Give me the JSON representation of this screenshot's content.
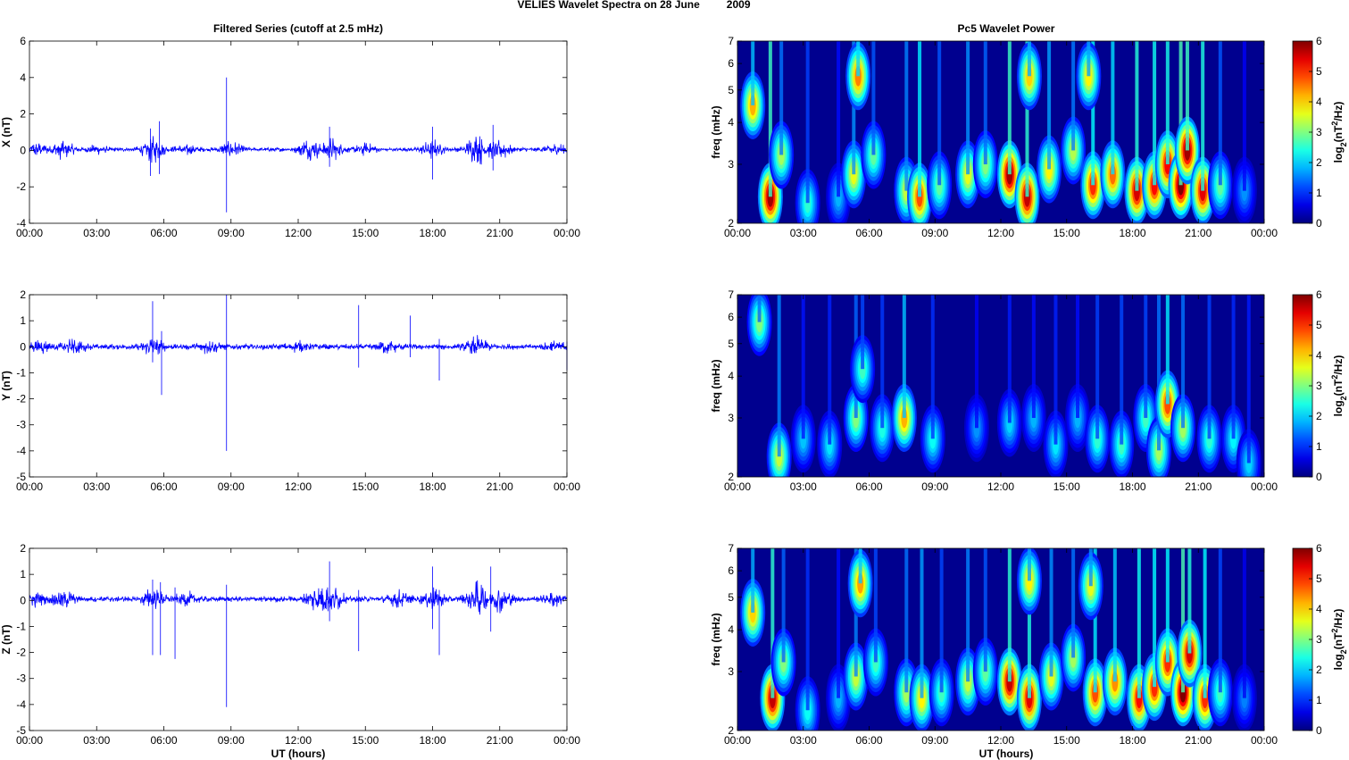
{
  "figure": {
    "title_left": "VELIES Wavelet Spectra on 28 June",
    "title_year": "2009",
    "left_title": "Filtered Series (cutoff at 2.5 mHz)",
    "right_title": "Pc5 Wavelet Power",
    "x_axis_label": "UT (hours)",
    "freq_label": "freq (mHz)",
    "colorbar_label_prefix": "log",
    "colorbar_label_sub": "2",
    "colorbar_label_mid": "(nT",
    "colorbar_label_sup": "2",
    "colorbar_label_suffix": "/Hz)"
  },
  "colors": {
    "trace": "#0000ff",
    "spectrum_background": "#00008f"
  },
  "chart_data": [
    {
      "type": "line",
      "panel": "x-series",
      "title": "Filtered Series (cutoff at 2.5 mHz)",
      "ylabel": "X (nT)",
      "xlabel": "",
      "xlim": [
        0,
        24
      ],
      "ylim": [
        -4,
        6
      ],
      "x_ticks": [
        "00:00",
        "03:00",
        "06:00",
        "09:00",
        "12:00",
        "15:00",
        "18:00",
        "21:00",
        "00:00"
      ],
      "y_ticks": [
        "-4",
        "-2",
        "0",
        "2",
        "4",
        "6"
      ],
      "baseline": 0.05,
      "activity": [
        {
          "t": 0.3,
          "amp": 0.35
        },
        {
          "t": 1.5,
          "amp": 0.5
        },
        {
          "t": 3.0,
          "amp": 0.2
        },
        {
          "t": 5.5,
          "amp": 0.7
        },
        {
          "t": 7.0,
          "amp": 0.3
        },
        {
          "t": 9.0,
          "amp": 0.4
        },
        {
          "t": 12.5,
          "amp": 0.6
        },
        {
          "t": 13.5,
          "amp": 0.6
        },
        {
          "t": 15.0,
          "amp": 0.3
        },
        {
          "t": 18.0,
          "amp": 0.5
        },
        {
          "t": 20.0,
          "amp": 0.9
        },
        {
          "t": 21.0,
          "amp": 0.6
        },
        {
          "t": 23.5,
          "amp": 0.3
        }
      ],
      "spikes": [
        {
          "t": 5.4,
          "min": -1.4,
          "max": 1.2
        },
        {
          "t": 5.8,
          "min": -1.3,
          "max": 1.6
        },
        {
          "t": 8.8,
          "min": -3.4,
          "max": 4.0
        },
        {
          "t": 13.4,
          "min": -0.9,
          "max": 1.3
        },
        {
          "t": 18.0,
          "min": -1.6,
          "max": 1.3
        },
        {
          "t": 20.7,
          "min": -1.1,
          "max": 1.4
        }
      ]
    },
    {
      "type": "line",
      "panel": "y-series",
      "title": "",
      "ylabel": "Y (nT)",
      "xlabel": "",
      "xlim": [
        0,
        24
      ],
      "ylim": [
        -5,
        2
      ],
      "x_ticks": [
        "00:00",
        "03:00",
        "06:00",
        "09:00",
        "12:00",
        "15:00",
        "18:00",
        "21:00",
        "00:00"
      ],
      "y_ticks": [
        "-5",
        "-4",
        "-3",
        "-2",
        "-1",
        "0",
        "1",
        "2"
      ],
      "baseline": 0.0,
      "activity": [
        {
          "t": 0.5,
          "amp": 0.2
        },
        {
          "t": 2.0,
          "amp": 0.25
        },
        {
          "t": 5.5,
          "amp": 0.3
        },
        {
          "t": 8.0,
          "amp": 0.2
        },
        {
          "t": 12.0,
          "amp": 0.15
        },
        {
          "t": 16.0,
          "amp": 0.2
        },
        {
          "t": 20.0,
          "amp": 0.35
        },
        {
          "t": 23.5,
          "amp": 0.2
        }
      ],
      "spikes": [
        {
          "t": 5.5,
          "min": -0.6,
          "max": 1.75
        },
        {
          "t": 5.9,
          "min": -1.85,
          "max": 0.6
        },
        {
          "t": 8.8,
          "min": -4.0,
          "max": 2.0
        },
        {
          "t": 14.7,
          "min": -0.8,
          "max": 1.6
        },
        {
          "t": 17.0,
          "min": -0.4,
          "max": 1.2
        },
        {
          "t": 18.3,
          "min": -1.3,
          "max": 0.3
        },
        {
          "t": 24.0,
          "min": -0.9,
          "max": 0.2
        }
      ]
    },
    {
      "type": "line",
      "panel": "z-series",
      "title": "",
      "ylabel": "Z (nT)",
      "xlabel": "UT (hours)",
      "xlim": [
        0,
        24
      ],
      "ylim": [
        -5,
        2
      ],
      "x_ticks": [
        "00:00",
        "03:00",
        "06:00",
        "09:00",
        "12:00",
        "15:00",
        "18:00",
        "21:00",
        "00:00"
      ],
      "y_ticks": [
        "-5",
        "-4",
        "-3",
        "-2",
        "-1",
        "0",
        "1",
        "2"
      ],
      "baseline": 0.05,
      "activity": [
        {
          "t": 0.3,
          "amp": 0.25
        },
        {
          "t": 1.5,
          "amp": 0.35
        },
        {
          "t": 5.5,
          "amp": 0.4
        },
        {
          "t": 7.0,
          "amp": 0.25
        },
        {
          "t": 12.8,
          "amp": 0.45
        },
        {
          "t": 13.5,
          "amp": 0.5
        },
        {
          "t": 16.5,
          "amp": 0.3
        },
        {
          "t": 18.0,
          "amp": 0.4
        },
        {
          "t": 20.0,
          "amp": 0.7
        },
        {
          "t": 21.0,
          "amp": 0.45
        },
        {
          "t": 23.5,
          "amp": 0.25
        }
      ],
      "spikes": [
        {
          "t": 5.5,
          "min": -2.1,
          "max": 0.8
        },
        {
          "t": 5.85,
          "min": -2.1,
          "max": 0.7
        },
        {
          "t": 6.5,
          "min": -2.25,
          "max": 0.5
        },
        {
          "t": 8.8,
          "min": -4.1,
          "max": 0.6
        },
        {
          "t": 13.4,
          "min": -0.8,
          "max": 1.5
        },
        {
          "t": 14.7,
          "min": -1.95,
          "max": 0.4
        },
        {
          "t": 18.0,
          "min": -1.1,
          "max": 1.3
        },
        {
          "t": 18.3,
          "min": -2.1,
          "max": 0.4
        },
        {
          "t": 20.6,
          "min": -1.2,
          "max": 1.3
        }
      ]
    },
    {
      "type": "heatmap",
      "panel": "x-wavelet",
      "title": "Pc5 Wavelet Power",
      "ylabel": "freq (mHz)",
      "xlabel": "",
      "xlim": [
        0,
        24
      ],
      "ylim": [
        2,
        7
      ],
      "y_scale": "log",
      "x_ticks": [
        "00:00",
        "03:00",
        "06:00",
        "09:00",
        "12:00",
        "15:00",
        "18:00",
        "21:00",
        "00:00"
      ],
      "y_ticks": [
        "2",
        "3",
        "4",
        "5",
        "6",
        "7"
      ],
      "colorbar_ticks": [
        "0",
        "1",
        "2",
        "3",
        "4",
        "5",
        "6"
      ],
      "colorbar_range": [
        0,
        6
      ],
      "blobs": [
        {
          "t": 0.7,
          "f": 4.5,
          "p": 4.2
        },
        {
          "t": 1.5,
          "f": 2.4,
          "p": 5.8
        },
        {
          "t": 2.0,
          "f": 3.2,
          "p": 3.2
        },
        {
          "t": 3.2,
          "f": 2.3,
          "p": 2.5
        },
        {
          "t": 4.6,
          "f": 2.4,
          "p": 1.8
        },
        {
          "t": 5.3,
          "f": 2.8,
          "p": 3.6
        },
        {
          "t": 5.5,
          "f": 5.5,
          "p": 4.5
        },
        {
          "t": 6.2,
          "f": 3.2,
          "p": 2.8
        },
        {
          "t": 7.7,
          "f": 2.5,
          "p": 3.4
        },
        {
          "t": 8.3,
          "f": 2.4,
          "p": 4.8
        },
        {
          "t": 9.2,
          "f": 2.6,
          "p": 2.8
        },
        {
          "t": 10.5,
          "f": 2.8,
          "p": 3.6
        },
        {
          "t": 11.3,
          "f": 3.0,
          "p": 3.0
        },
        {
          "t": 12.4,
          "f": 2.8,
          "p": 5.8
        },
        {
          "t": 13.2,
          "f": 2.4,
          "p": 5.6
        },
        {
          "t": 13.3,
          "f": 5.5,
          "p": 4.0
        },
        {
          "t": 14.2,
          "f": 2.9,
          "p": 3.8
        },
        {
          "t": 15.3,
          "f": 3.3,
          "p": 3.3
        },
        {
          "t": 16.2,
          "f": 2.6,
          "p": 5.0
        },
        {
          "t": 16.0,
          "f": 5.5,
          "p": 3.8
        },
        {
          "t": 17.1,
          "f": 2.8,
          "p": 4.6
        },
        {
          "t": 18.2,
          "f": 2.5,
          "p": 5.5
        },
        {
          "t": 19.0,
          "f": 2.6,
          "p": 5.2
        },
        {
          "t": 19.6,
          "f": 3.0,
          "p": 5.3
        },
        {
          "t": 20.2,
          "f": 2.6,
          "p": 6.0
        },
        {
          "t": 20.5,
          "f": 3.3,
          "p": 5.8
        },
        {
          "t": 21.2,
          "f": 2.5,
          "p": 5.4
        },
        {
          "t": 22.0,
          "f": 2.6,
          "p": 2.8
        },
        {
          "t": 23.1,
          "f": 2.5,
          "p": 1.6
        }
      ]
    },
    {
      "type": "heatmap",
      "panel": "y-wavelet",
      "title": "",
      "ylabel": "freq (mHz)",
      "xlabel": "",
      "xlim": [
        0,
        24
      ],
      "ylim": [
        2,
        7
      ],
      "y_scale": "log",
      "x_ticks": [
        "00:00",
        "03:00",
        "06:00",
        "09:00",
        "12:00",
        "15:00",
        "18:00",
        "21:00",
        "00:00"
      ],
      "y_ticks": [
        "2",
        "3",
        "4",
        "5",
        "6",
        "7"
      ],
      "colorbar_ticks": [
        "0",
        "1",
        "2",
        "3",
        "4",
        "5",
        "6"
      ],
      "colorbar_range": [
        0,
        6
      ],
      "blobs": [
        {
          "t": 1.0,
          "f": 5.8,
          "p": 3.0
        },
        {
          "t": 1.9,
          "f": 2.3,
          "p": 3.4
        },
        {
          "t": 3.0,
          "f": 2.6,
          "p": 1.9
        },
        {
          "t": 4.2,
          "f": 2.5,
          "p": 2.1
        },
        {
          "t": 5.4,
          "f": 3.0,
          "p": 3.0
        },
        {
          "t": 5.7,
          "f": 4.2,
          "p": 2.6
        },
        {
          "t": 6.6,
          "f": 2.8,
          "p": 2.4
        },
        {
          "t": 7.6,
          "f": 3.0,
          "p": 4.2
        },
        {
          "t": 8.9,
          "f": 2.6,
          "p": 2.3
        },
        {
          "t": 10.9,
          "f": 2.8,
          "p": 1.6
        },
        {
          "t": 12.4,
          "f": 2.9,
          "p": 2.0
        },
        {
          "t": 13.5,
          "f": 3.0,
          "p": 1.8
        },
        {
          "t": 14.5,
          "f": 2.5,
          "p": 2.1
        },
        {
          "t": 15.5,
          "f": 3.0,
          "p": 1.8
        },
        {
          "t": 16.4,
          "f": 2.6,
          "p": 2.5
        },
        {
          "t": 17.5,
          "f": 2.5,
          "p": 2.6
        },
        {
          "t": 18.6,
          "f": 3.0,
          "p": 2.6
        },
        {
          "t": 19.2,
          "f": 2.4,
          "p": 3.2
        },
        {
          "t": 19.6,
          "f": 3.3,
          "p": 4.8
        },
        {
          "t": 20.3,
          "f": 2.8,
          "p": 3.2
        },
        {
          "t": 21.5,
          "f": 2.6,
          "p": 2.5
        },
        {
          "t": 22.6,
          "f": 2.6,
          "p": 2.2
        },
        {
          "t": 23.3,
          "f": 2.2,
          "p": 2.0
        }
      ]
    },
    {
      "type": "heatmap",
      "panel": "z-wavelet",
      "title": "",
      "ylabel": "freq (mHz)",
      "xlabel": "UT (hours)",
      "xlim": [
        0,
        24
      ],
      "ylim": [
        2,
        7
      ],
      "y_scale": "log",
      "x_ticks": [
        "00:00",
        "03:00",
        "06:00",
        "09:00",
        "12:00",
        "15:00",
        "18:00",
        "21:00",
        "00:00"
      ],
      "y_ticks": [
        "2",
        "3",
        "4",
        "5",
        "6",
        "7"
      ],
      "colorbar_ticks": [
        "0",
        "1",
        "2",
        "3",
        "4",
        "5",
        "6"
      ],
      "colorbar_range": [
        0,
        6
      ],
      "blobs": [
        {
          "t": 0.7,
          "f": 4.5,
          "p": 4.0
        },
        {
          "t": 1.6,
          "f": 2.5,
          "p": 5.6
        },
        {
          "t": 2.1,
          "f": 3.2,
          "p": 3.0
        },
        {
          "t": 3.2,
          "f": 2.3,
          "p": 2.3
        },
        {
          "t": 4.6,
          "f": 2.5,
          "p": 1.8
        },
        {
          "t": 5.4,
          "f": 2.9,
          "p": 3.4
        },
        {
          "t": 5.6,
          "f": 5.5,
          "p": 4.3
        },
        {
          "t": 6.3,
          "f": 3.2,
          "p": 2.6
        },
        {
          "t": 7.7,
          "f": 2.6,
          "p": 3.2
        },
        {
          "t": 8.4,
          "f": 2.5,
          "p": 3.8
        },
        {
          "t": 9.3,
          "f": 2.6,
          "p": 2.6
        },
        {
          "t": 10.5,
          "f": 2.8,
          "p": 3.4
        },
        {
          "t": 11.3,
          "f": 3.0,
          "p": 2.8
        },
        {
          "t": 12.4,
          "f": 2.8,
          "p": 5.6
        },
        {
          "t": 13.3,
          "f": 2.5,
          "p": 5.4
        },
        {
          "t": 13.3,
          "f": 5.6,
          "p": 3.8
        },
        {
          "t": 14.3,
          "f": 2.9,
          "p": 3.6
        },
        {
          "t": 15.3,
          "f": 3.3,
          "p": 3.2
        },
        {
          "t": 16.3,
          "f": 2.6,
          "p": 4.8
        },
        {
          "t": 16.1,
          "f": 5.4,
          "p": 3.6
        },
        {
          "t": 17.2,
          "f": 2.8,
          "p": 4.4
        },
        {
          "t": 18.3,
          "f": 2.5,
          "p": 5.2
        },
        {
          "t": 19.0,
          "f": 2.7,
          "p": 5.0
        },
        {
          "t": 19.6,
          "f": 3.2,
          "p": 5.0
        },
        {
          "t": 20.3,
          "f": 2.6,
          "p": 6.0
        },
        {
          "t": 20.6,
          "f": 3.4,
          "p": 5.5
        },
        {
          "t": 21.3,
          "f": 2.5,
          "p": 5.0
        },
        {
          "t": 22.0,
          "f": 2.6,
          "p": 2.6
        },
        {
          "t": 23.1,
          "f": 2.5,
          "p": 1.5
        }
      ]
    }
  ]
}
